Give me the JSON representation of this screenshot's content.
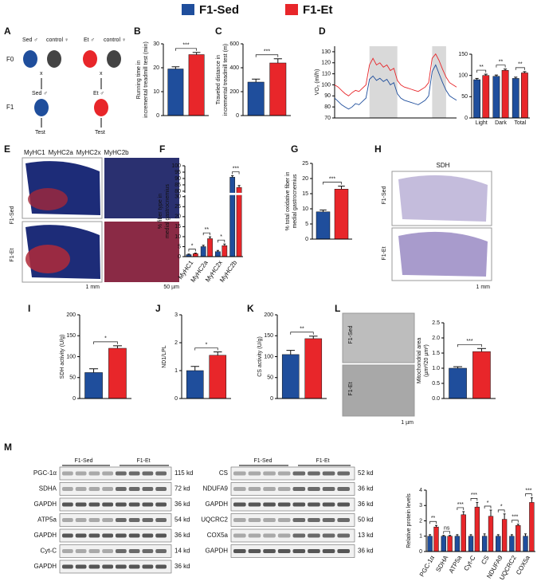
{
  "panel_labels": [
    "A",
    "B",
    "C",
    "D",
    "E",
    "F",
    "G",
    "H",
    "I",
    "J",
    "K",
    "L",
    "M"
  ],
  "schematic": {
    "f0": "F0",
    "f1": "F1",
    "sed_male": "Sed ♂",
    "control_female": "control ♀",
    "et_male": "Et ♂",
    "cross": "x",
    "sed_offspring": "Sed ♂",
    "et_offspring": "Et ♂",
    "test": "Test"
  },
  "fiber_images": {
    "stains": [
      {
        "text": "MyHC1",
        "color": "#1e9b3c"
      },
      {
        "text": "MyHC2a",
        "color": "#e0262a"
      },
      {
        "text": "MyHC2x",
        "color": "#777777"
      },
      {
        "text": "MyHC2b",
        "color": "#1f3f9a"
      }
    ],
    "rows": [
      "F1-Sed",
      "F1-Et"
    ],
    "scale_left": "1 mm",
    "scale_right": "50 µm"
  },
  "sdh_images": {
    "title": "SDH",
    "rows": [
      "F1-Sed",
      "F1-Et"
    ],
    "scale": "1 mm"
  },
  "em_images": {
    "rows": [
      "F1-Sed",
      "F1-Et"
    ],
    "scale": "1 µm"
  },
  "blots": {
    "groups": [
      "F1-Sed",
      "F1-Et"
    ],
    "left": [
      {
        "protein": "PGC-1α",
        "size": "115 kd"
      },
      {
        "protein": "SDHA",
        "size": "72 kd"
      },
      {
        "protein": "GAPDH",
        "size": "36 kd"
      },
      {
        "protein": "ATP5a",
        "size": "54 kd"
      },
      {
        "protein": "GAPDH",
        "size": "36 kd"
      },
      {
        "protein": "Cyt-C",
        "size": "14 kd"
      },
      {
        "protein": "GAPDH",
        "size": "36 kd"
      }
    ],
    "right": [
      {
        "protein": "CS",
        "size": "52 kd"
      },
      {
        "protein": "NDUFA9",
        "size": "36 kd"
      },
      {
        "protein": "GAPDH",
        "size": "36 kd"
      },
      {
        "protein": "UQCRC2",
        "size": "50 kd"
      },
      {
        "protein": "COX5a",
        "size": "13 kd"
      },
      {
        "protein": "GAPDH",
        "size": "36 kd"
      }
    ]
  },
  "chart_data": [
    {
      "type": "bar",
      "ylabel": [
        "Running time in",
        "incremental treadmill test (min)"
      ],
      "ylim": [
        0,
        30
      ],
      "yticks": [
        0,
        10,
        20,
        30
      ],
      "series": [
        {
          "name": "F1-Sed",
          "color": "#1f4e9c",
          "values": [
            19.5
          ],
          "errors": [
            0.9
          ]
        },
        {
          "name": "F1-Et",
          "color": "#e8262a",
          "values": [
            25.5
          ],
          "errors": [
            0.9
          ]
        }
      ],
      "significance": [
        "***"
      ]
    },
    {
      "type": "bar",
      "ylabel": [
        "Traveled distance in",
        "incremental treadmill test (m)"
      ],
      "ylim": [
        0,
        600
      ],
      "yticks": [
        0,
        200,
        400,
        600
      ],
      "series": [
        {
          "color": "#1f4e9c",
          "values": [
            280
          ],
          "errors": [
            25
          ]
        },
        {
          "color": "#e8262a",
          "values": [
            440
          ],
          "errors": [
            35
          ]
        }
      ],
      "significance": [
        "***"
      ]
    },
    {
      "type": "line",
      "ylabel": [
        "VO₂ (ml/h)"
      ],
      "ylim": [
        70,
        135
      ],
      "yticks": [
        70,
        80,
        90,
        100,
        110,
        120,
        130
      ],
      "xlim": [
        1,
        36
      ],
      "shaded": [
        [
          11,
          19
        ],
        [
          29,
          33
        ]
      ],
      "x": [
        1,
        2,
        3,
        4,
        5,
        6,
        7,
        8,
        9,
        10,
        11,
        12,
        13,
        14,
        15,
        16,
        17,
        18,
        19,
        20,
        21,
        22,
        23,
        24,
        25,
        26,
        27,
        28,
        29,
        30,
        31,
        32,
        33,
        34,
        35,
        36
      ],
      "series": [
        {
          "color": "#1f4e9c",
          "values": [
            88,
            85,
            82,
            80,
            78,
            80,
            83,
            82,
            85,
            88,
            105,
            108,
            104,
            106,
            103,
            105,
            100,
            102,
            92,
            88,
            86,
            85,
            84,
            83,
            82,
            84,
            86,
            90,
            112,
            118,
            110,
            102,
            95,
            90,
            88,
            86
          ]
        },
        {
          "color": "#e8262a",
          "values": [
            100,
            98,
            95,
            92,
            90,
            93,
            95,
            94,
            97,
            100,
            118,
            124,
            118,
            120,
            116,
            118,
            113,
            115,
            104,
            100,
            98,
            97,
            96,
            95,
            94,
            96,
            98,
            102,
            124,
            128,
            122,
            114,
            107,
            102,
            100,
            98
          ]
        }
      ]
    },
    {
      "type": "bar",
      "categories": [
        "Light",
        "Dark",
        "Total"
      ],
      "ylim": [
        0,
        150
      ],
      "yticks": [
        0,
        50,
        100,
        150
      ],
      "series": [
        {
          "color": "#1f4e9c",
          "values": [
            90,
            98,
            93
          ],
          "errors": [
            3,
            3,
            3
          ]
        },
        {
          "color": "#e8262a",
          "values": [
            100,
            112,
            106
          ],
          "errors": [
            3,
            3,
            3
          ]
        }
      ],
      "significance": [
        "**",
        "**",
        "**"
      ]
    },
    {
      "type": "bar",
      "ylabel": [
        "% fiber type in",
        "medial gastrocnemius"
      ],
      "categories": [
        "MyHC1",
        "MyHC2a",
        "MyHC2x",
        "MyHC2b"
      ],
      "category_colors": [
        "#1e9b3c",
        "#e0262a",
        "#777777",
        "#1f3f9a"
      ],
      "ylim": [
        0,
        100
      ],
      "axis_break": [
        30,
        80
      ],
      "yticks": [
        0,
        5,
        10,
        15,
        20,
        25,
        30,
        80,
        85,
        90,
        95,
        100
      ],
      "series": [
        {
          "color": "#1f4e9c",
          "values": [
            1,
            5,
            2.5,
            91
          ],
          "errors": [
            0.3,
            0.7,
            0.6,
            1.2
          ]
        },
        {
          "color": "#e8262a",
          "values": [
            1.5,
            9,
            5.5,
            83
          ],
          "errors": [
            0.3,
            0.9,
            0.8,
            1.5
          ]
        }
      ],
      "significance": [
        "*",
        "**",
        "*",
        "***"
      ]
    },
    {
      "type": "bar",
      "ylabel": [
        "% total oxidative fiber in",
        "medial gastrocnemius"
      ],
      "ylim": [
        0,
        25
      ],
      "yticks": [
        0,
        5,
        10,
        15,
        20,
        25
      ],
      "series": [
        {
          "color": "#1f4e9c",
          "values": [
            9
          ],
          "errors": [
            0.6
          ]
        },
        {
          "color": "#e8262a",
          "values": [
            16.5
          ],
          "errors": [
            1
          ]
        }
      ],
      "significance": [
        "***"
      ]
    },
    {
      "type": "bar",
      "ylabel": [
        "SDH activity (U/g)"
      ],
      "ylim": [
        0,
        200
      ],
      "yticks": [
        0,
        50,
        100,
        150,
        200
      ],
      "series": [
        {
          "color": "#1f4e9c",
          "values": [
            62
          ],
          "errors": [
            9
          ]
        },
        {
          "color": "#e8262a",
          "values": [
            120
          ],
          "errors": [
            6
          ]
        }
      ],
      "significance": [
        "*"
      ]
    },
    {
      "type": "bar",
      "ylabel": [
        "ND1/LPL"
      ],
      "ylim": [
        0,
        3
      ],
      "yticks": [
        0,
        1,
        2,
        3
      ],
      "series": [
        {
          "color": "#1f4e9c",
          "values": [
            1.0
          ],
          "errors": [
            0.15
          ]
        },
        {
          "color": "#e8262a",
          "values": [
            1.55
          ],
          "errors": [
            0.12
          ]
        }
      ],
      "significance": [
        "*"
      ]
    },
    {
      "type": "bar",
      "ylabel": [
        "CS activity (U/g)"
      ],
      "ylim": [
        0,
        200
      ],
      "yticks": [
        0,
        50,
        100,
        150,
        200
      ],
      "series": [
        {
          "color": "#1f4e9c",
          "values": [
            105
          ],
          "errors": [
            10
          ]
        },
        {
          "color": "#e8262a",
          "values": [
            143
          ],
          "errors": [
            6
          ]
        }
      ],
      "significance": [
        "**"
      ]
    },
    {
      "type": "bar",
      "ylabel": [
        "Mitochondrial area",
        "(µm²/20 µm²)"
      ],
      "ylim": [
        0,
        2.5
      ],
      "yticks": [
        {
          "value": 0,
          "label": "0.0"
        },
        {
          "value": 0.5,
          "label": "0.5"
        },
        {
          "value": 1,
          "label": "1.0"
        },
        {
          "value": 1.5,
          "label": "1.5"
        },
        {
          "value": 2,
          "label": "2.0"
        },
        {
          "value": 2.5,
          "label": "2.5"
        }
      ],
      "series": [
        {
          "color": "#1f4e9c",
          "values": [
            1.0
          ],
          "errors": [
            0.05
          ]
        },
        {
          "color": "#e8262a",
          "values": [
            1.55
          ],
          "errors": [
            0.1
          ]
        }
      ],
      "significance": [
        "***"
      ]
    },
    {
      "type": "bar",
      "ylabel": [
        "Relative protein levels"
      ],
      "categories": [
        "PGC-1α",
        "SDHA",
        "ATP5a",
        "Cyt-C",
        "CS",
        "NDUFA9",
        "UQCRC2",
        "COX5a"
      ],
      "ylim": [
        0,
        4
      ],
      "yticks": [
        0,
        1,
        2,
        3,
        4
      ],
      "series": [
        {
          "color": "#1f4e9c",
          "values": [
            1,
            1,
            1,
            1,
            1,
            1,
            1,
            1
          ],
          "errors": [
            0.1,
            0.05,
            0.1,
            0.1,
            0.15,
            0.1,
            0.1,
            0.15
          ]
        },
        {
          "color": "#e8262a",
          "values": [
            1.6,
            1.0,
            2.4,
            2.9,
            2.3,
            2.1,
            1.7,
            3.2
          ],
          "errors": [
            0.1,
            0.05,
            0.2,
            0.3,
            0.4,
            0.35,
            0.08,
            0.3
          ]
        }
      ],
      "significance": [
        "**",
        "ns",
        "***",
        "***",
        "*",
        "*",
        "***",
        "***"
      ]
    }
  ]
}
